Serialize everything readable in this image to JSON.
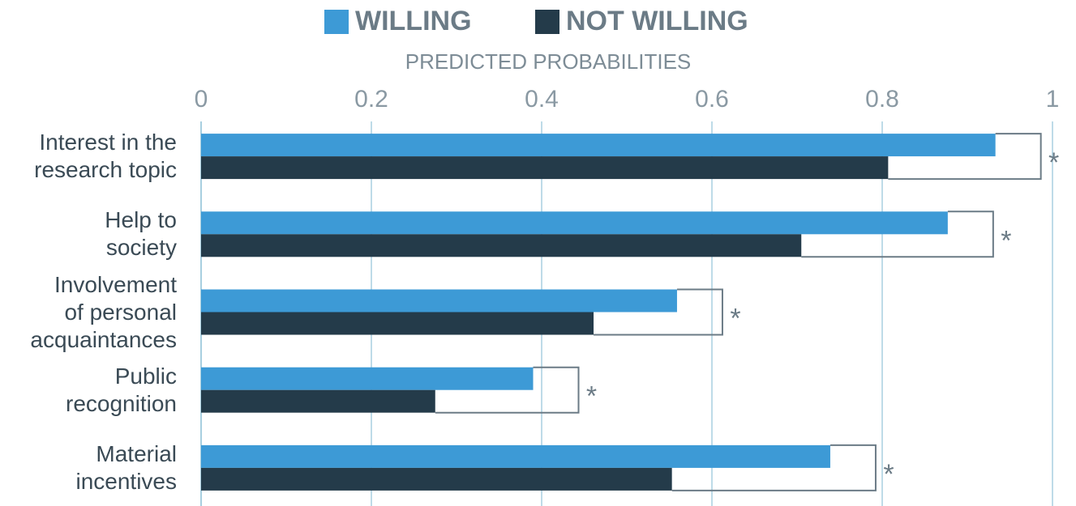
{
  "chart_data": {
    "type": "hbar",
    "axis_label": "PREDICTED PROBABILITIES",
    "categories": [
      "Interest in the\nresearch topic",
      "Help to\nsociety",
      "Involvement\nof personal\nacquaintances",
      "Public\nrecognition",
      "Material\nincentives"
    ],
    "series": [
      {
        "name": "WILLING",
        "color": "#3d9ad6",
        "values": [
          0.933,
          0.877,
          0.559,
          0.39,
          0.739
        ]
      },
      {
        "name": "NOT WILLING",
        "color": "#243b4a",
        "values": [
          0.807,
          0.705,
          0.461,
          0.275,
          0.553
        ]
      }
    ],
    "significance": [
      "*",
      "*",
      "*",
      "*",
      "*"
    ],
    "xlim": [
      0,
      1
    ],
    "xticks": [
      0,
      0.2,
      0.4,
      0.6,
      0.8,
      1
    ],
    "grid": true,
    "legend": "top"
  }
}
